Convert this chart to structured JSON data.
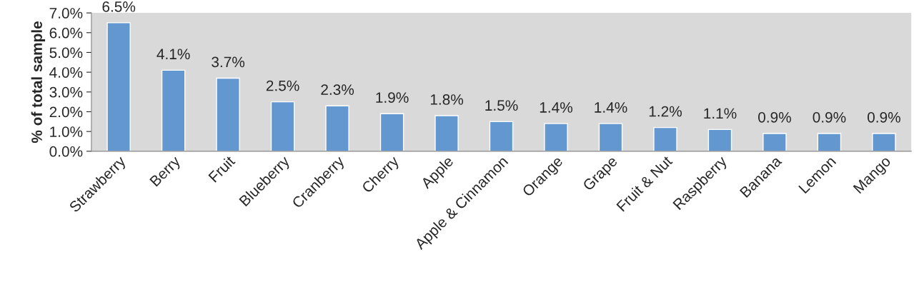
{
  "chart_data": {
    "type": "bar",
    "ylabel": "% of total sample",
    "categories": [
      "Strawberry",
      "Berry",
      "Fruit",
      "Blueberry",
      "Cranberry",
      "Cherry",
      "Apple",
      "Apple & Cinnamon",
      "Orange",
      "Grape",
      "Fruit & Nut",
      "Raspberry",
      "Banana",
      "Lemon",
      "Mango"
    ],
    "values": [
      6.5,
      4.1,
      3.7,
      2.5,
      2.3,
      1.9,
      1.8,
      1.5,
      1.4,
      1.4,
      1.2,
      1.1,
      0.9,
      0.9,
      0.9
    ],
    "value_labels": [
      "6.5%",
      "4.1%",
      "3.7%",
      "2.5%",
      "2.3%",
      "1.9%",
      "1.8%",
      "1.5%",
      "1.4%",
      "1.4%",
      "1.2%",
      "1.1%",
      "0.9%",
      "0.9%",
      "0.9%"
    ],
    "color": "#6397cf",
    "ylim": [
      0,
      7
    ],
    "yticks": [
      {
        "value": 0,
        "label": "0.0%"
      },
      {
        "value": 1,
        "label": "1.0%"
      },
      {
        "value": 2,
        "label": "2.0%"
      },
      {
        "value": 3,
        "label": "3.0%"
      },
      {
        "value": 4,
        "label": "4.0%"
      },
      {
        "value": 5,
        "label": "5.0%"
      },
      {
        "value": 6,
        "label": "6.0%"
      },
      {
        "value": 7,
        "label": "7.0%"
      }
    ],
    "grid": false,
    "legend": false
  }
}
